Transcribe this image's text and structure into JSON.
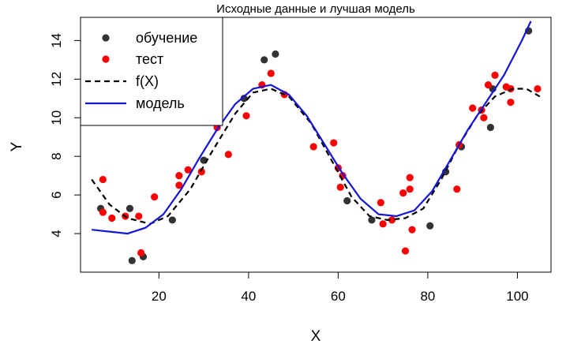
{
  "chart_data": {
    "type": "scatter",
    "title": "Исходные данные и лучшая модель",
    "xlabel": "X",
    "ylabel": "Y",
    "xlim": [
      2.5,
      107.5
    ],
    "ylim": [
      2.0,
      15.2
    ],
    "x_ticks": [
      20,
      40,
      60,
      80,
      100
    ],
    "y_ticks": [
      4,
      6,
      8,
      10,
      12,
      14
    ],
    "legend_position": "top-left",
    "grid": false,
    "legend": [
      {
        "label": "обучение",
        "kind": "point",
        "color": "#333333"
      },
      {
        "label": "тест",
        "kind": "point",
        "color": "#ff0000"
      },
      {
        "label": "f(X)",
        "kind": "dashed-line",
        "color": "#000000"
      },
      {
        "label": "модель",
        "kind": "line",
        "color": "#1515d8"
      }
    ],
    "series": [
      {
        "name": "обучение",
        "kind": "points",
        "color": "#333333",
        "points": [
          [
            7.0,
            5.3
          ],
          [
            13.5,
            5.3
          ],
          [
            14.0,
            2.6
          ],
          [
            16.5,
            2.8
          ],
          [
            23.0,
            4.7
          ],
          [
            30.0,
            7.8
          ],
          [
            39.0,
            11.0
          ],
          [
            43.5,
            13.0
          ],
          [
            46.0,
            13.3
          ],
          [
            62.0,
            5.7
          ],
          [
            67.5,
            4.7
          ],
          [
            80.5,
            4.4
          ],
          [
            84.0,
            7.2
          ],
          [
            87.5,
            8.5
          ],
          [
            94.0,
            9.5
          ],
          [
            94.5,
            11.5
          ],
          [
            102.5,
            14.5
          ]
        ]
      },
      {
        "name": "тест",
        "kind": "points",
        "color": "#ff0000",
        "points": [
          [
            7.5,
            6.8
          ],
          [
            7.5,
            5.1
          ],
          [
            9.5,
            4.8
          ],
          [
            12.5,
            4.9
          ],
          [
            15.5,
            4.9
          ],
          [
            16.0,
            3.0
          ],
          [
            19.0,
            5.9
          ],
          [
            24.5,
            7.0
          ],
          [
            24.5,
            6.5
          ],
          [
            26.5,
            7.3
          ],
          [
            29.5,
            7.2
          ],
          [
            33.0,
            9.5
          ],
          [
            35.5,
            8.1
          ],
          [
            39.5,
            10.1
          ],
          [
            43.0,
            11.7
          ],
          [
            45.0,
            12.3
          ],
          [
            48.0,
            11.2
          ],
          [
            54.5,
            8.5
          ],
          [
            59.0,
            8.7
          ],
          [
            60.0,
            7.4
          ],
          [
            60.5,
            6.4
          ],
          [
            61.0,
            7.0
          ],
          [
            69.5,
            5.6
          ],
          [
            70.0,
            4.5
          ],
          [
            72.0,
            4.7
          ],
          [
            74.5,
            6.1
          ],
          [
            75.0,
            3.1
          ],
          [
            76.0,
            6.9
          ],
          [
            76.0,
            6.3
          ],
          [
            76.5,
            4.2
          ],
          [
            86.5,
            6.3
          ],
          [
            87.0,
            8.6
          ],
          [
            90.0,
            10.5
          ],
          [
            92.0,
            10.4
          ],
          [
            92.5,
            10.0
          ],
          [
            93.5,
            11.7
          ],
          [
            95.0,
            12.2
          ],
          [
            97.5,
            11.6
          ],
          [
            98.5,
            10.8
          ],
          [
            98.5,
            11.5
          ],
          [
            104.5,
            11.5
          ]
        ]
      },
      {
        "name": "f(X)",
        "kind": "dashed-line",
        "color": "#000000",
        "points": [
          [
            5.0,
            6.8
          ],
          [
            9.0,
            5.5
          ],
          [
            13.0,
            4.8
          ],
          [
            18.0,
            4.5
          ],
          [
            22.0,
            4.9
          ],
          [
            27.0,
            6.3
          ],
          [
            32.0,
            8.3
          ],
          [
            37.0,
            10.2
          ],
          [
            41.0,
            11.3
          ],
          [
            45.0,
            11.5
          ],
          [
            49.0,
            11.1
          ],
          [
            54.0,
            9.7
          ],
          [
            59.0,
            7.6
          ],
          [
            63.0,
            5.9
          ],
          [
            67.0,
            4.9
          ],
          [
            71.0,
            4.7
          ],
          [
            75.0,
            4.8
          ],
          [
            79.0,
            5.3
          ],
          [
            83.0,
            6.8
          ],
          [
            87.0,
            8.6
          ],
          [
            91.0,
            10.1
          ],
          [
            95.0,
            11.1
          ],
          [
            99.0,
            11.5
          ],
          [
            102.0,
            11.5
          ],
          [
            105.0,
            11.1
          ]
        ]
      },
      {
        "name": "модель",
        "kind": "line",
        "color": "#1515d8",
        "points": [
          [
            5.0,
            4.2
          ],
          [
            9.0,
            4.1
          ],
          [
            13.0,
            4.0
          ],
          [
            17.0,
            4.3
          ],
          [
            21.0,
            5.0
          ],
          [
            25.0,
            6.3
          ],
          [
            29.0,
            7.9
          ],
          [
            33.0,
            9.4
          ],
          [
            37.0,
            10.7
          ],
          [
            41.0,
            11.5
          ],
          [
            45.0,
            11.7
          ],
          [
            49.0,
            11.2
          ],
          [
            53.0,
            10.1
          ],
          [
            57.0,
            8.6
          ],
          [
            61.0,
            7.1
          ],
          [
            65.0,
            5.8
          ],
          [
            69.0,
            5.0
          ],
          [
            73.0,
            4.9
          ],
          [
            77.0,
            5.2
          ],
          [
            81.0,
            6.2
          ],
          [
            85.0,
            7.8
          ],
          [
            89.0,
            9.4
          ],
          [
            93.0,
            10.8
          ],
          [
            97.0,
            12.2
          ],
          [
            101.0,
            14.0
          ],
          [
            103.0,
            15.0
          ]
        ]
      }
    ]
  }
}
